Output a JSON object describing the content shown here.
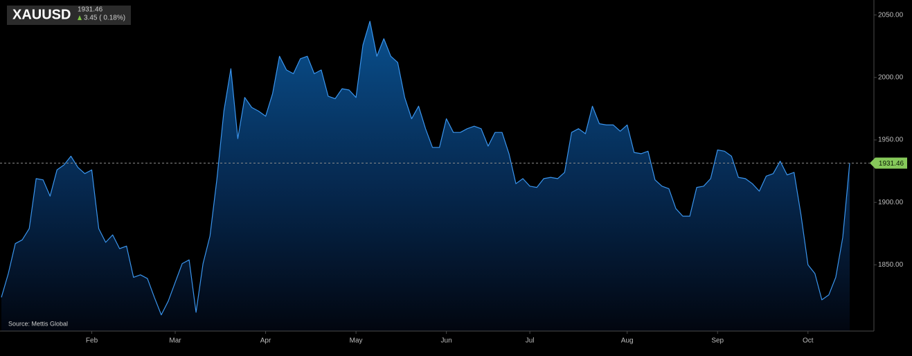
{
  "header": {
    "symbol": "XAUUSD",
    "price": 1931.46,
    "change": "3.45 ( 0.18%)"
  },
  "chart_data": {
    "type": "area",
    "source": "Source: Mettis Global",
    "color": "#3a95ee",
    "last_value": 1931.46,
    "ylim": [
      1797,
      2062
    ],
    "yticks": [
      {
        "value": 1850,
        "label": "1850.00"
      },
      {
        "value": 1900,
        "label": "1900.00"
      },
      {
        "value": 1950,
        "label": "1950.00"
      },
      {
        "value": 2000,
        "label": "2000.00"
      },
      {
        "value": 2050,
        "label": "2050.00"
      }
    ],
    "categories": [
      null,
      null,
      null,
      null,
      null,
      null,
      null,
      null,
      null,
      null,
      null,
      null,
      null,
      "Feb",
      null,
      null,
      null,
      null,
      null,
      null,
      null,
      null,
      null,
      null,
      null,
      "Mar",
      null,
      null,
      null,
      null,
      null,
      null,
      null,
      null,
      null,
      null,
      null,
      null,
      "Apr",
      null,
      null,
      null,
      null,
      null,
      null,
      null,
      null,
      null,
      null,
      null,
      null,
      "May",
      null,
      null,
      null,
      null,
      null,
      null,
      null,
      null,
      null,
      null,
      null,
      null,
      "Jun",
      null,
      null,
      null,
      null,
      null,
      null,
      null,
      null,
      null,
      null,
      null,
      "Jul",
      null,
      null,
      null,
      null,
      null,
      null,
      null,
      null,
      null,
      null,
      null,
      null,
      null,
      "Aug",
      null,
      null,
      null,
      null,
      null,
      null,
      null,
      null,
      null,
      null,
      null,
      null,
      "Sep",
      null,
      null,
      null,
      null,
      null,
      null,
      null,
      null,
      null,
      null,
      null,
      null,
      "Oct",
      null,
      null,
      null,
      null,
      null,
      null
    ],
    "values": [
      1824,
      1843,
      1867,
      1870,
      1879,
      1919,
      1918,
      1905,
      1926,
      1930,
      1937,
      1928,
      1923,
      1926,
      1879,
      1868,
      1874,
      1863,
      1865,
      1840,
      1842,
      1839,
      1824,
      1810,
      1821,
      1836,
      1851,
      1854,
      1812,
      1851,
      1873,
      1919,
      1973,
      2007,
      1951,
      1984,
      1976,
      1973,
      1969,
      1987,
      2017,
      2006,
      2003,
      2015,
      2017,
      2003,
      2006,
      1985,
      1983,
      1991,
      1990,
      1984,
      2026,
      2045,
      2017,
      2031,
      2017,
      2012,
      1984,
      1967,
      1977,
      1959,
      1944,
      1944,
      1967,
      1956,
      1956,
      1959,
      1961,
      1959,
      1945,
      1956,
      1956,
      1939,
      1915,
      1919,
      1913,
      1912,
      1919,
      1920,
      1919,
      1924,
      1956,
      1959,
      1955,
      1977,
      1963,
      1962,
      1962,
      1957,
      1962,
      1940,
      1939,
      1941,
      1918,
      1913,
      1911,
      1895,
      1889,
      1889,
      1912,
      1913,
      1919,
      1942,
      1941,
      1937,
      1920,
      1919,
      1915,
      1909,
      1921,
      1923,
      1933,
      1922,
      1924,
      1890,
      1850,
      1843,
      1822,
      1826,
      1840,
      1872,
      1931.46
    ]
  }
}
